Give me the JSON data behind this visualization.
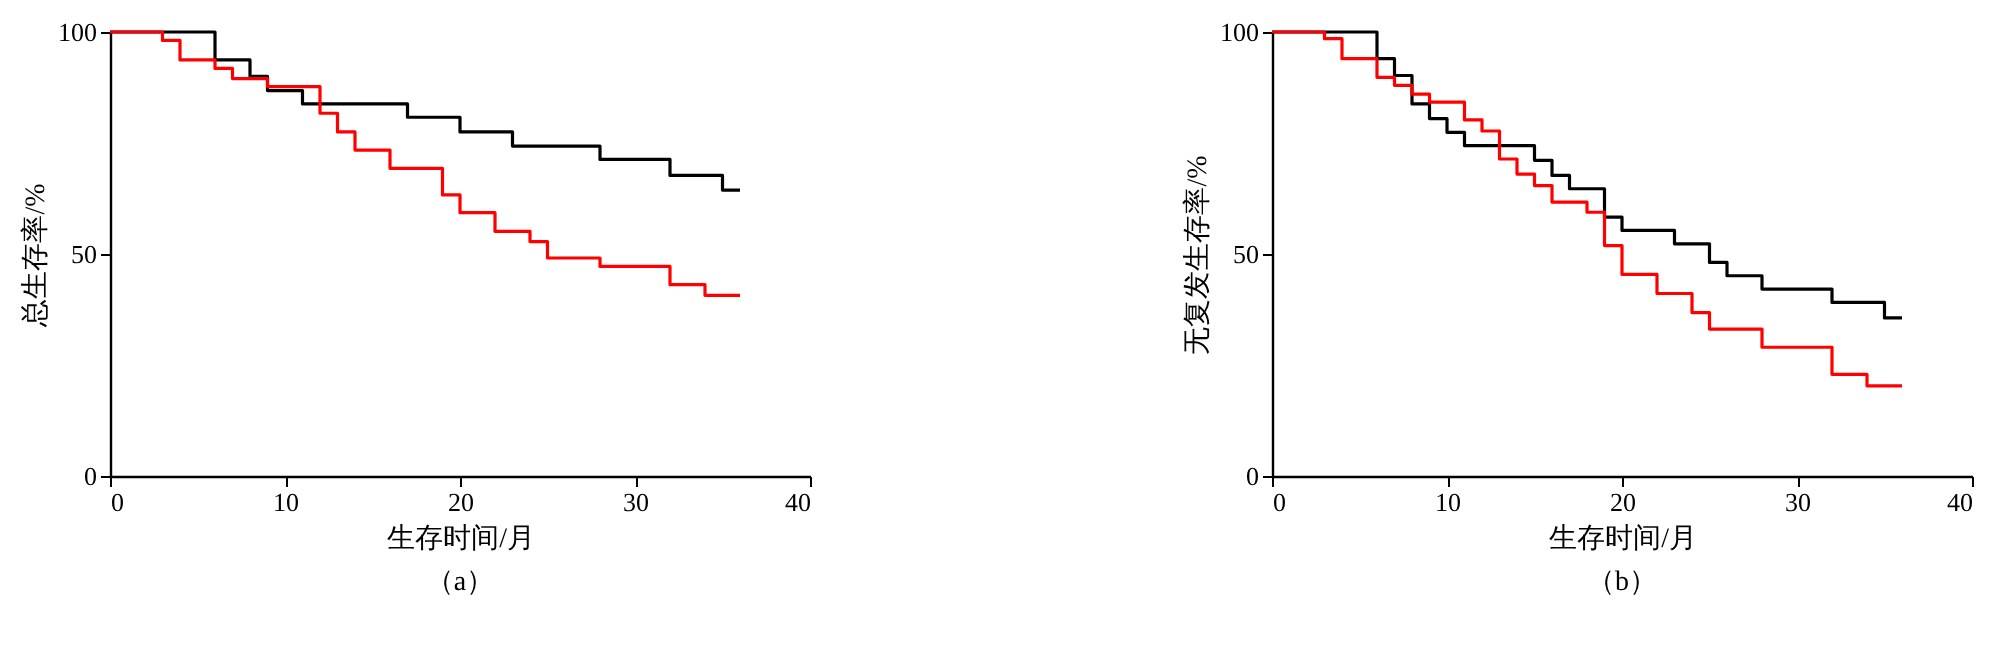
{
  "chart_data": [
    {
      "type": "step",
      "xlabel": "生存时间/月",
      "ylabel": "总生存率/%",
      "xlim": [
        0,
        40
      ],
      "xticks": [
        0,
        10,
        20,
        30,
        40
      ],
      "ylim": [
        0,
        100
      ],
      "yticks": [
        0,
        50,
        100
      ],
      "grid": false,
      "annotations": [
        "（a）"
      ],
      "series": [
        {
          "color": "#000000",
          "x": [
            0,
            6,
            8,
            9,
            11,
            17,
            20,
            23,
            28,
            32,
            35,
            36
          ],
          "values": [
            100,
            93.7,
            90,
            86.8,
            83.8,
            80.8,
            77.5,
            74.3,
            71.3,
            67.7,
            64.4,
            64.4
          ]
        },
        {
          "color": "#ff0000",
          "x": [
            0,
            3,
            4,
            6,
            7,
            9,
            12,
            13,
            14,
            16,
            19,
            20,
            22,
            24,
            25,
            28,
            32,
            34,
            36
          ],
          "values": [
            100,
            98.1,
            93.7,
            91.8,
            89.5,
            87.7,
            81.7,
            77.5,
            73.4,
            69.3,
            63.3,
            59.3,
            55.1,
            52.8,
            49.1,
            47.2,
            43.1,
            40.7,
            40.7
          ]
        }
      ]
    },
    {
      "type": "step",
      "xlabel": "生存时间/月",
      "ylabel": "无复发生存率/%",
      "xlim": [
        0,
        40
      ],
      "xticks": [
        0,
        10,
        20,
        30,
        40
      ],
      "ylim": [
        0,
        100
      ],
      "yticks": [
        0,
        50,
        100
      ],
      "grid": false,
      "annotations": [
        "（b）"
      ],
      "series": [
        {
          "color": "#000000",
          "x": [
            0,
            6,
            7,
            8,
            9,
            10,
            11,
            15,
            16,
            17,
            19,
            20,
            23,
            25,
            26,
            28,
            32,
            35,
            36
          ],
          "values": [
            100,
            94,
            90.2,
            83.8,
            80.5,
            77.4,
            74.4,
            71.1,
            67.7,
            64.7,
            58.3,
            55.3,
            52.3,
            48.1,
            45.1,
            42.1,
            39.1,
            35.6,
            35.6
          ]
        },
        {
          "color": "#ff0000",
          "x": [
            0,
            3,
            4,
            6,
            7,
            8,
            9,
            11,
            12,
            13,
            14,
            15,
            16,
            18,
            19,
            20,
            22,
            24,
            25,
            28,
            32,
            34,
            36
          ],
          "values": [
            100,
            98.5,
            94,
            89.8,
            88,
            86,
            84.2,
            80.2,
            77.7,
            71.4,
            68,
            65.4,
            61.7,
            59.4,
            51.9,
            45.4,
            41.1,
            36.8,
            33.1,
            29,
            22.9,
            20.3,
            20.3
          ]
        }
      ]
    }
  ]
}
